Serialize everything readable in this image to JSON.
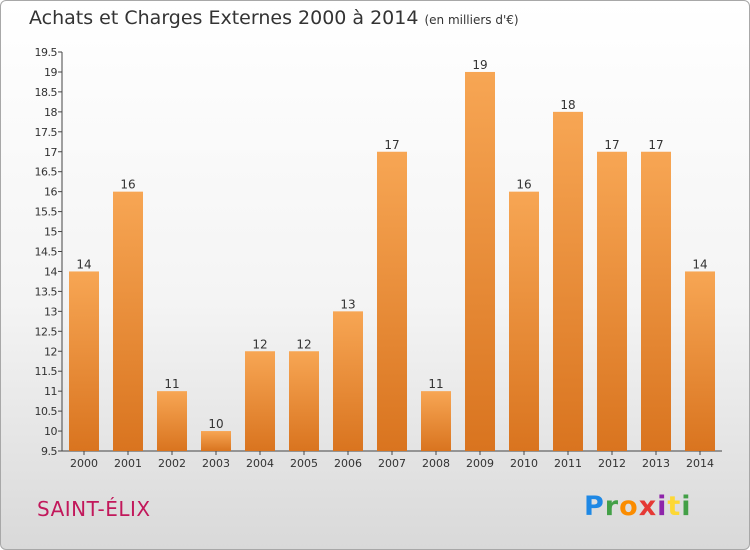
{
  "header": {
    "title": "Achats et Charges Externes 2000 à 2014",
    "unit": "(en milliers d'€)"
  },
  "commune": {
    "name": "SAINT-ÉLIX"
  },
  "logo": {
    "letters": [
      {
        "ch": "P",
        "color": "#1e88e5"
      },
      {
        "ch": "r",
        "color": "#43a047"
      },
      {
        "ch": "o",
        "color": "#fb8c00"
      },
      {
        "ch": "x",
        "color": "#e53935"
      },
      {
        "ch": "i",
        "color": "#8e24aa"
      },
      {
        "ch": "t",
        "color": "#fdd835"
      },
      {
        "ch": "i",
        "color": "#43a047"
      }
    ]
  },
  "colors": {
    "bar_light": "#f7a654",
    "bar_dark": "#d9741f",
    "commune": "#c2185b"
  },
  "chart_data": {
    "type": "bar",
    "title": "Achats et Charges Externes 2000 à 2014",
    "subtitle": "(en milliers d'€)",
    "categories": [
      "2000",
      "2001",
      "2002",
      "2003",
      "2004",
      "2005",
      "2006",
      "2007",
      "2008",
      "2009",
      "2010",
      "2011",
      "2012",
      "2013",
      "2014"
    ],
    "values": [
      14,
      16,
      11,
      10,
      12,
      12,
      13,
      17,
      11,
      19,
      16,
      18,
      17,
      17,
      14
    ],
    "data_labels": [
      "14",
      "16",
      "11",
      "10",
      "12",
      "12",
      "13",
      "17",
      "11",
      "19",
      "16",
      "18",
      "17",
      "17",
      "14"
    ],
    "ylim": [
      9.5,
      19.5
    ],
    "yticks": [
      9.5,
      10,
      10.5,
      11,
      11.5,
      12,
      12.5,
      13,
      13.5,
      14,
      14.5,
      15,
      15.5,
      16,
      16.5,
      17,
      17.5,
      18,
      18.5,
      19,
      19.5
    ],
    "ytick_labels": [
      "9.5",
      "10",
      "10.5",
      "11",
      "11.5",
      "12",
      "12.5",
      "13",
      "13.5",
      "14",
      "14.5",
      "15",
      "15.5",
      "16",
      "16.5",
      "17",
      "17.5",
      "18",
      "18.5",
      "19",
      "19.5"
    ],
    "grid": false,
    "legend": "none"
  }
}
